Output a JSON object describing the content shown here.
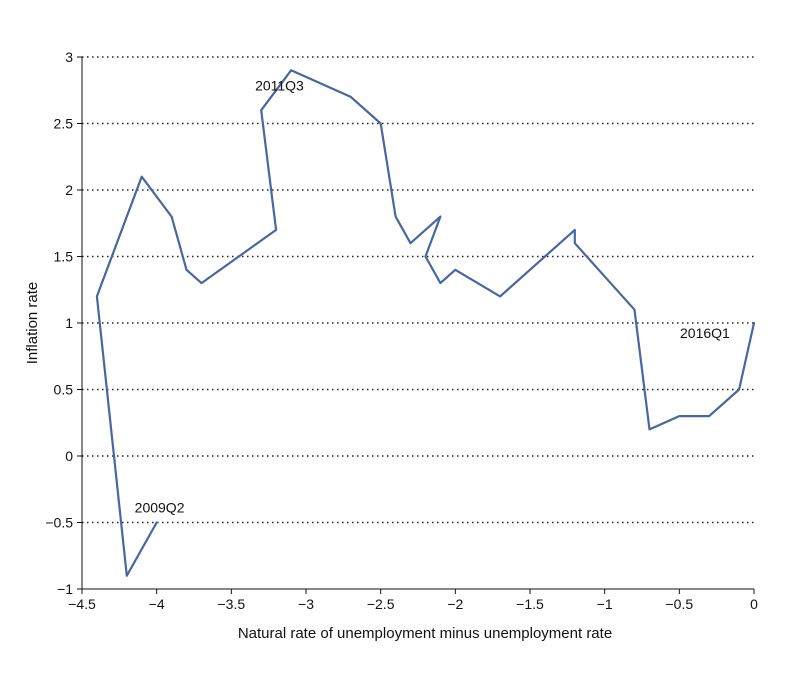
{
  "chart_data": {
    "type": "line",
    "title": "",
    "xlabel": "Natural rate of unemployment minus unemployment rate",
    "ylabel": "Inflation rate",
    "xlim": [
      -4.5,
      0
    ],
    "ylim": [
      -1,
      3
    ],
    "x_ticks": [
      -4.5,
      -4,
      -3.5,
      -3,
      -2.5,
      -2,
      -1.5,
      -1,
      -0.5,
      0
    ],
    "x_tick_labels": [
      "−4.5",
      "−4",
      "−3.5",
      "−3",
      "−2.5",
      "−2",
      "−1.5",
      "−1",
      "−0.5",
      "0"
    ],
    "y_ticks": [
      -1,
      -0.5,
      0,
      0.5,
      1,
      1.5,
      2,
      2.5,
      3
    ],
    "y_tick_labels": [
      "−1",
      "−0.5",
      "0",
      "0.5",
      "1",
      "1.5",
      "2",
      "2.5",
      "3"
    ],
    "grid": "horizontal-dotted",
    "series_color": "#4a66a0",
    "series": [
      {
        "x": [
          -4.0,
          -4.2,
          -4.4,
          -4.1,
          -3.9,
          -3.8,
          -3.7,
          -3.2,
          -3.3,
          -3.1,
          -2.7,
          -2.5,
          -2.4,
          -2.3,
          -2.1,
          -2.2,
          -2.1,
          -2.0,
          -1.7,
          -1.2,
          -1.2,
          -0.8,
          -0.7,
          -0.5,
          -0.3,
          -0.1,
          0.0
        ],
        "y": [
          -0.5,
          -0.9,
          1.2,
          2.1,
          1.8,
          1.4,
          1.3,
          1.7,
          2.6,
          2.9,
          2.7,
          2.5,
          1.8,
          1.6,
          1.8,
          1.5,
          1.3,
          1.4,
          1.2,
          1.7,
          1.6,
          1.1,
          0.2,
          0.3,
          0.3,
          0.5,
          1.0
        ]
      }
    ],
    "annotations": [
      {
        "text": "2009Q2",
        "x": -4.0,
        "y": -0.5
      },
      {
        "text": "2011Q3",
        "x": -3.1,
        "y": 2.9
      },
      {
        "text": "2016Q1",
        "x": 0.0,
        "y": 1.0
      }
    ]
  }
}
